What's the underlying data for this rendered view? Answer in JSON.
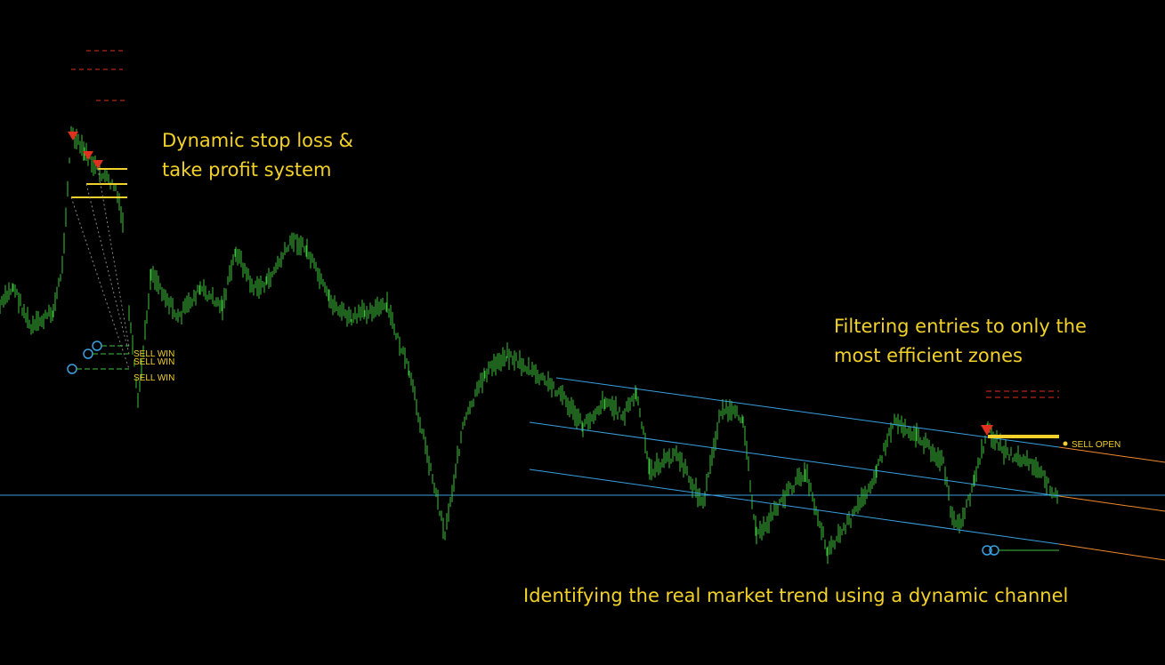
{
  "annotations": {
    "stop_loss": [
      "Dynamic stop loss &",
      "take profit system"
    ],
    "filtering": [
      "Filtering entries to only the",
      "most efficient zones"
    ],
    "trend": "Identifying the real market trend using a dynamic channel"
  },
  "signals": {
    "sell_win": [
      "SELL WIN",
      "SELL WIN",
      "SELL WIN"
    ],
    "sell_open": "SELL OPEN"
  }
}
